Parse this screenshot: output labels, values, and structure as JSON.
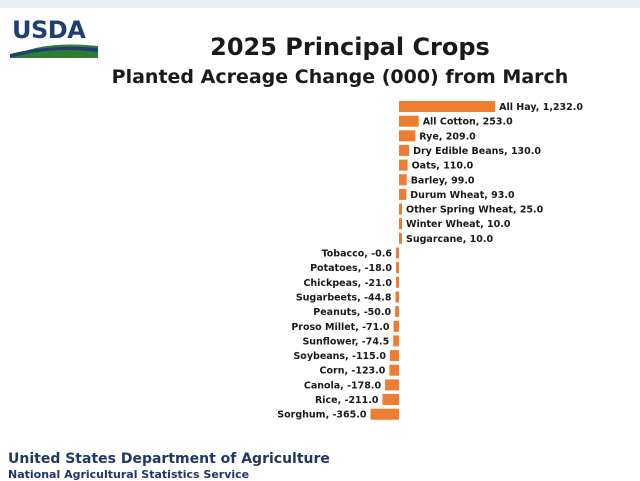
{
  "header": {
    "logo_text": "USDA",
    "title": "2025 Principal Crops",
    "subtitle": "Planted Acreage Change (000) from March"
  },
  "footer": {
    "department": "United States Department of Agriculture",
    "service": "National Agricultural Statistics Service"
  },
  "colors": {
    "bar": "#ed7d31",
    "logo_blue": "#1f3e73",
    "logo_green": "#2e7d32",
    "footer_text": "#1f3864"
  },
  "chart_data": {
    "type": "bar",
    "orientation": "horizontal",
    "title": "2025 Principal Crops",
    "subtitle": "Planted Acreage Change (000) from March",
    "xlim": [
      -400,
      1300
    ],
    "grid": false,
    "legend": "none",
    "categories": [
      "All Hay",
      "All Cotton",
      "Rye",
      "Dry Edible Beans",
      "Oats",
      "Barley",
      "Durum Wheat",
      "Other Spring Wheat",
      "Winter Wheat",
      "Sugarcane",
      "Tobacco",
      "Potatoes",
      "Chickpeas",
      "Sugarbeets",
      "Peanuts",
      "Proso Millet",
      "Sunflower",
      "Soybeans",
      "Corn",
      "Canola",
      "Rice",
      "Sorghum"
    ],
    "values": [
      1232.0,
      253.0,
      209.0,
      130.0,
      110.0,
      99.0,
      93.0,
      25.0,
      10.0,
      10.0,
      -0.6,
      -18.0,
      -21.0,
      -44.8,
      -50.0,
      -71.0,
      -74.5,
      -115.0,
      -123.0,
      -178.0,
      -211.0,
      -365.0
    ],
    "labels": [
      "All Hay, 1,232.0",
      "All Cotton,  253.0",
      "Rye, 209.0",
      "Dry Edible  Beans, 130.0",
      "Oats, 110.0",
      "Barley, 99.0",
      "Durum Wheat, 93.0",
      "Other Spring Wheat, 25.0",
      "Winter Wheat, 10.0",
      "Sugarcane, 10.0",
      "Tobacco, -0.6",
      "Potatoes, -18.0",
      "Chickpeas, -21.0",
      "Sugarbeets, -44.8",
      "Peanuts, -50.0",
      "Proso Millet, -71.0",
      "Sunflower, -74.5",
      "Soybeans, -115.0",
      "Corn, -123.0",
      "Canola, -178.0",
      "Rice, -211.0",
      "Sorghum, -365.0"
    ]
  }
}
